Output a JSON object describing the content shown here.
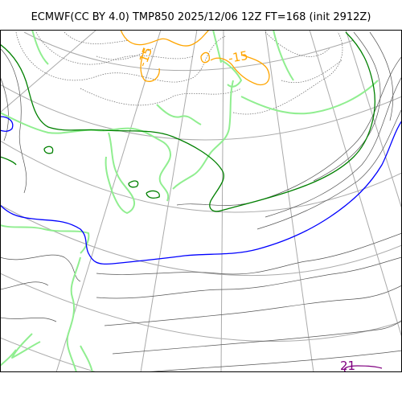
{
  "title": "ECMWF(CC BY 4.0) TMP850 2025/12/06 12Z FT=168 (init 2912Z)",
  "contour_labels": {
    "orange_a": "-15",
    "orange_b": "-15",
    "purple": "21"
  },
  "colors": {
    "coastline": "#90ee90",
    "isotherm_blue": "#0000ff",
    "isotherm_green": "#008000",
    "isotherm_orange": "#ffa500",
    "isotherm_purple": "#800080",
    "isotherm_gray": "#555555",
    "graticule": "#aaaaaa"
  }
}
